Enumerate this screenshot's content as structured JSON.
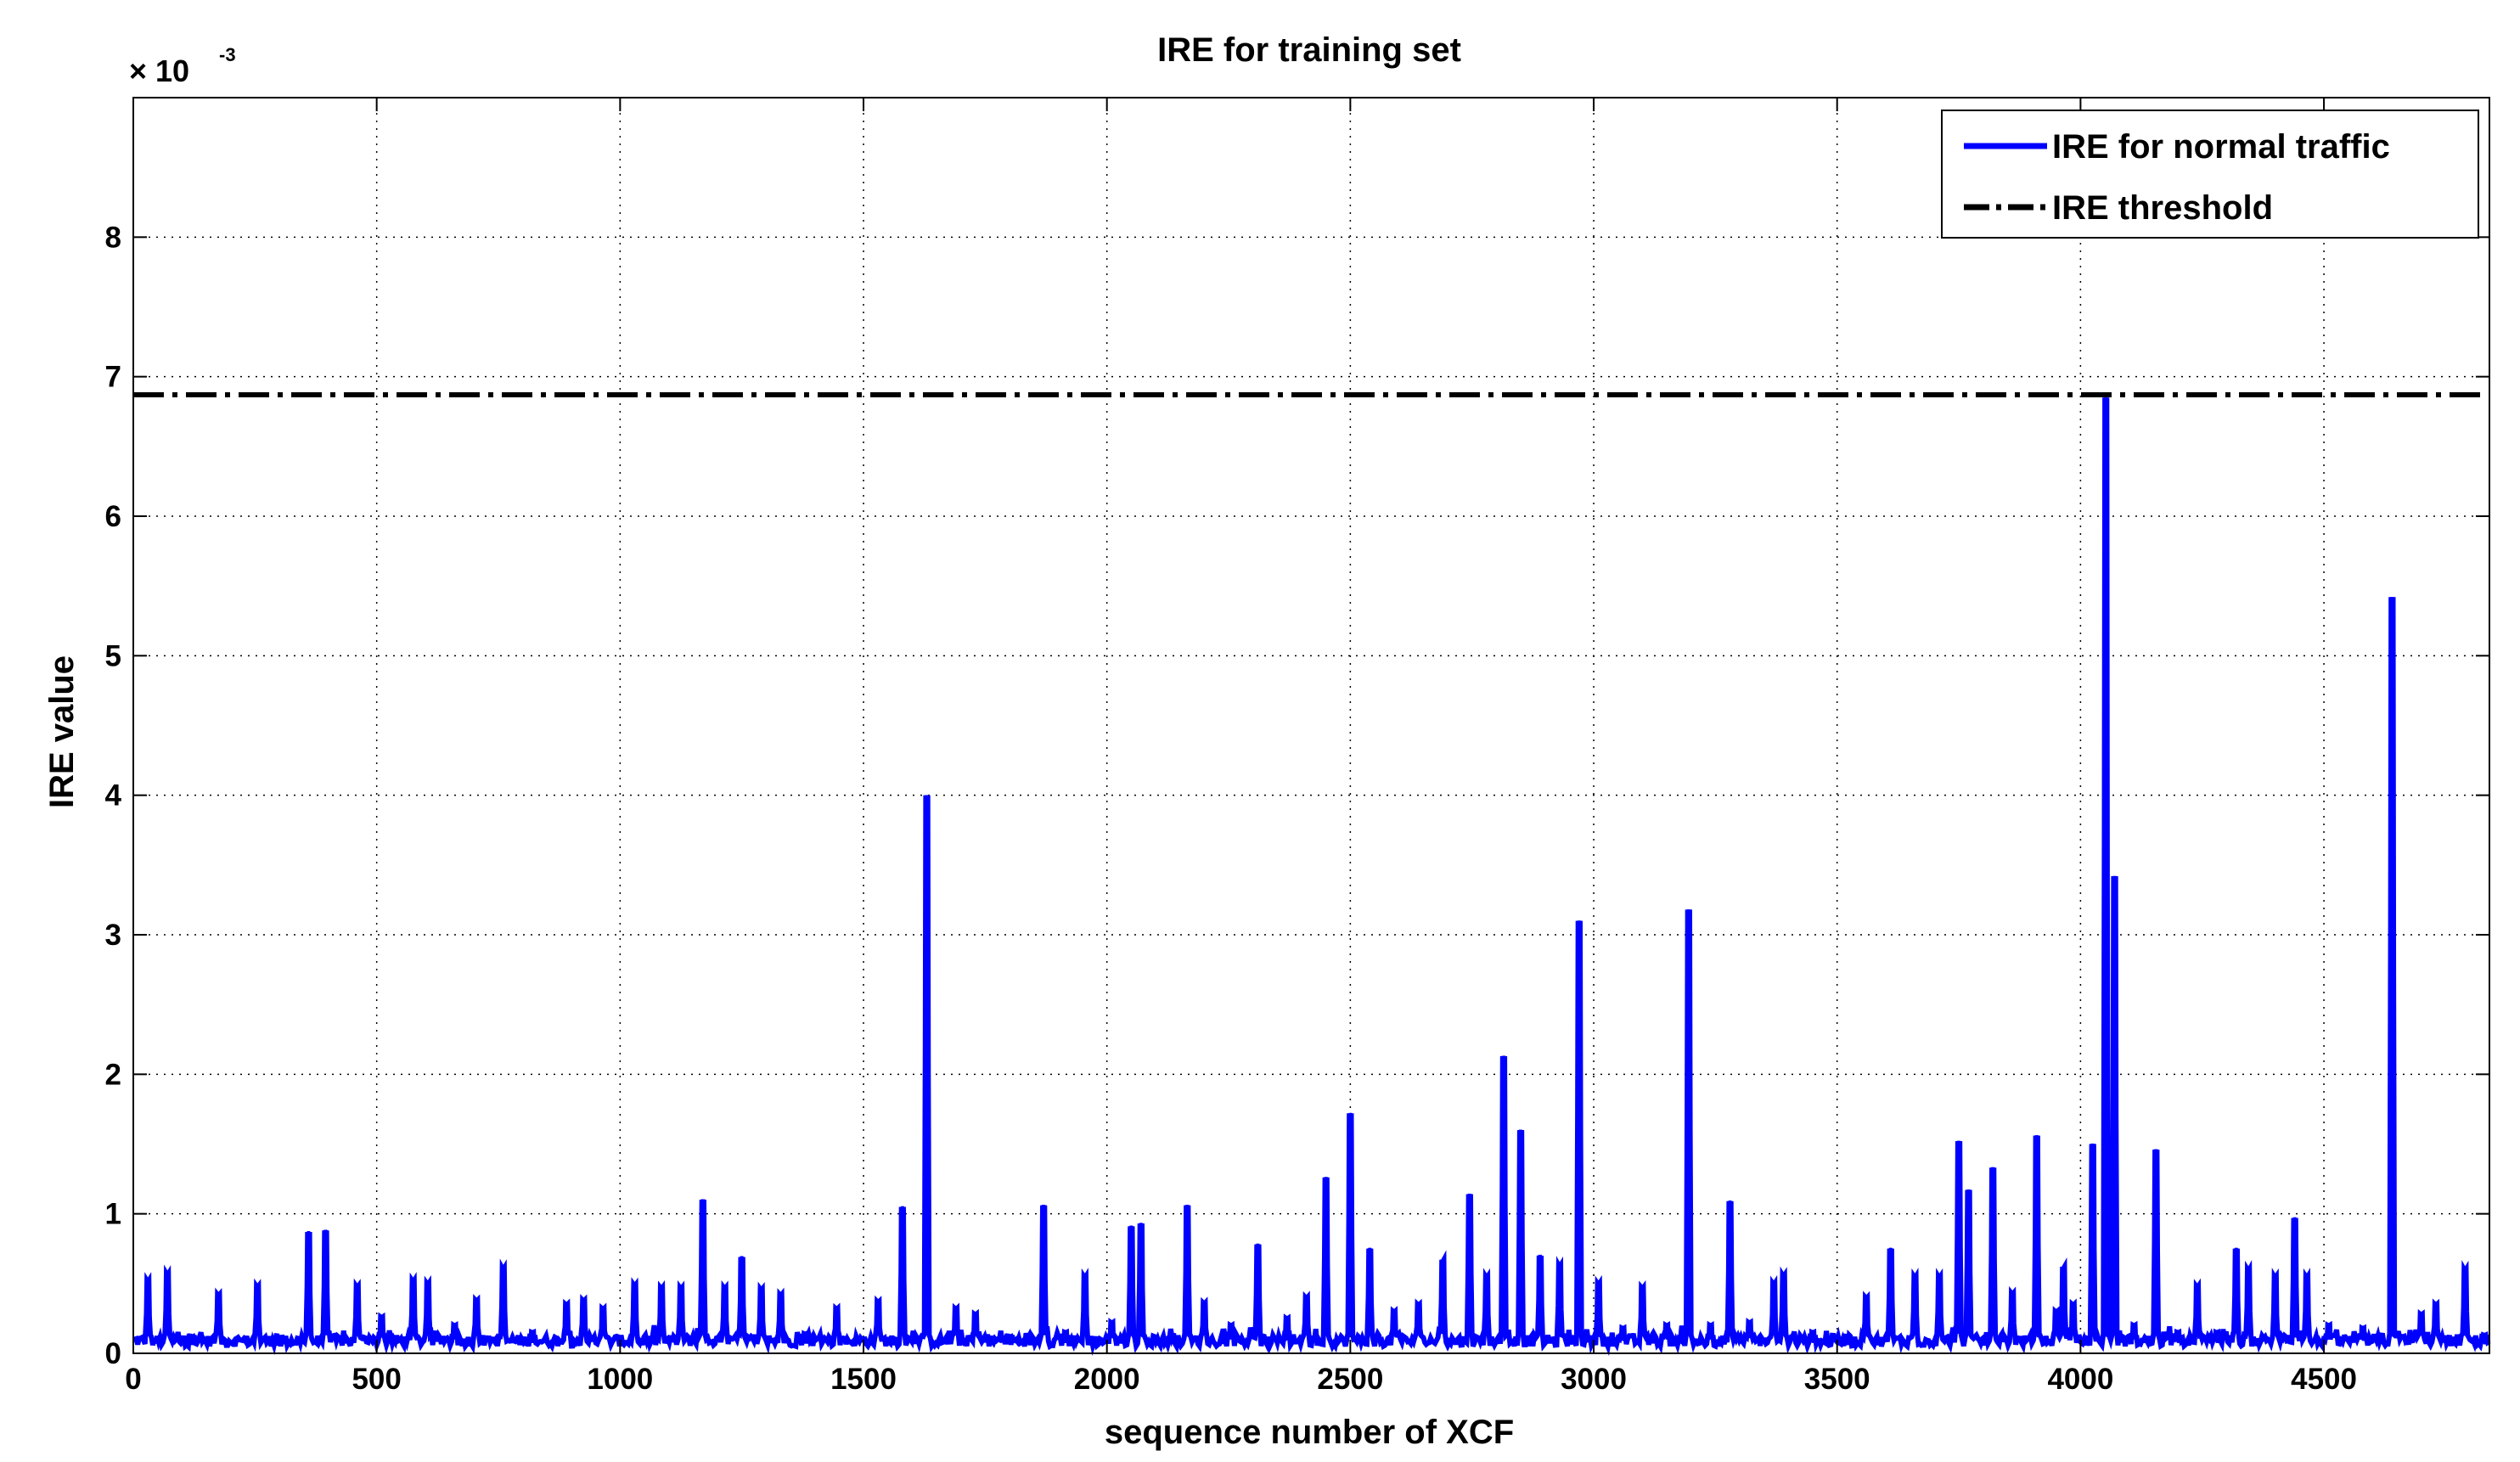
{
  "chart_data": {
    "type": "line",
    "title": "IRE for training set",
    "xlabel": "sequence number of XCF",
    "ylabel": "IRE value",
    "y_multiplier": {
      "base": "× 10",
      "exponent": "-3"
    },
    "xlim": [
      0,
      4840
    ],
    "ylim": [
      0,
      9
    ],
    "x_ticks": [
      0,
      500,
      1000,
      1500,
      2000,
      2500,
      3000,
      3500,
      4000,
      4500
    ],
    "x_tick_labels": [
      "0",
      "500",
      "1000",
      "1500",
      "2000",
      "2500",
      "3000",
      "3500",
      "4000",
      "4500"
    ],
    "y_ticks": [
      0,
      1,
      2,
      3,
      4,
      5,
      6,
      7,
      8
    ],
    "y_tick_labels": [
      "0",
      "1",
      "2",
      "3",
      "4",
      "5",
      "6",
      "7",
      "8"
    ],
    "grid": true,
    "legend_position": "top-right",
    "baseline": 0.09,
    "series": [
      {
        "name": "IRE for normal traffic",
        "color": "#0000ff",
        "style": "solid",
        "spikes": [
          [
            30,
            0.52
          ],
          [
            70,
            0.57
          ],
          [
            120,
            0.12
          ],
          [
            175,
            0.42
          ],
          [
            255,
            0.48
          ],
          [
            300,
            0.1
          ],
          [
            360,
            0.87
          ],
          [
            395,
            0.88
          ],
          [
            460,
            0.48
          ],
          [
            510,
            0.26
          ],
          [
            575,
            0.52
          ],
          [
            605,
            0.5
          ],
          [
            660,
            0.2
          ],
          [
            705,
            0.38
          ],
          [
            760,
            0.61
          ],
          [
            820,
            0.15
          ],
          [
            890,
            0.35
          ],
          [
            925,
            0.38
          ],
          [
            965,
            0.32
          ],
          [
            1030,
            0.49
          ],
          [
            1085,
            0.47
          ],
          [
            1125,
            0.47
          ],
          [
            1170,
            1.1
          ],
          [
            1215,
            0.47
          ],
          [
            1250,
            0.69
          ],
          [
            1290,
            0.46
          ],
          [
            1330,
            0.42
          ],
          [
            1380,
            0.14
          ],
          [
            1445,
            0.32
          ],
          [
            1530,
            0.37
          ],
          [
            1580,
            1.05
          ],
          [
            1630,
            4.0
          ],
          [
            1690,
            0.32
          ],
          [
            1730,
            0.28
          ],
          [
            1800,
            0.12
          ],
          [
            1870,
            1.06
          ],
          [
            1915,
            0.15
          ],
          [
            1955,
            0.55
          ],
          [
            2010,
            0.22
          ],
          [
            2050,
            0.91
          ],
          [
            2070,
            0.93
          ],
          [
            2165,
            1.06
          ],
          [
            2200,
            0.36
          ],
          [
            2255,
            0.2
          ],
          [
            2310,
            0.78
          ],
          [
            2370,
            0.25
          ],
          [
            2410,
            0.4
          ],
          [
            2450,
            1.26
          ],
          [
            2500,
            1.72
          ],
          [
            2540,
            0.75
          ],
          [
            2590,
            0.3
          ],
          [
            2640,
            0.35
          ],
          [
            2690,
            0.67
          ],
          [
            2745,
            1.14
          ],
          [
            2780,
            0.55
          ],
          [
            2815,
            2.13
          ],
          [
            2850,
            1.6
          ],
          [
            2890,
            0.7
          ],
          [
            2930,
            0.63
          ],
          [
            2970,
            3.1
          ],
          [
            3010,
            0.5
          ],
          [
            3060,
            0.18
          ],
          [
            3100,
            0.47
          ],
          [
            3150,
            0.2
          ],
          [
            3195,
            3.18
          ],
          [
            3240,
            0.2
          ],
          [
            3280,
            1.09
          ],
          [
            3320,
            0.22
          ],
          [
            3370,
            0.5
          ],
          [
            3390,
            0.56
          ],
          [
            3450,
            0.15
          ],
          [
            3520,
            0.12
          ],
          [
            3560,
            0.4
          ],
          [
            3610,
            0.75
          ],
          [
            3660,
            0.55
          ],
          [
            3710,
            0.55
          ],
          [
            3750,
            1.52
          ],
          [
            3770,
            1.17
          ],
          [
            3820,
            1.33
          ],
          [
            3860,
            0.43
          ],
          [
            3910,
            1.56
          ],
          [
            3950,
            0.3
          ],
          [
            3965,
            0.62
          ],
          [
            3985,
            0.35
          ],
          [
            4025,
            1.5
          ],
          [
            4052,
            6.85
          ],
          [
            4070,
            3.42
          ],
          [
            4110,
            0.2
          ],
          [
            4155,
            1.46
          ],
          [
            4200,
            0.15
          ],
          [
            4240,
            0.48
          ],
          [
            4280,
            0.15
          ],
          [
            4320,
            0.75
          ],
          [
            4345,
            0.6
          ],
          [
            4400,
            0.55
          ],
          [
            4440,
            0.97
          ],
          [
            4465,
            0.55
          ],
          [
            4510,
            0.2
          ],
          [
            4580,
            0.18
          ],
          [
            4640,
            5.42
          ],
          [
            4700,
            0.28
          ],
          [
            4730,
            0.35
          ],
          [
            4790,
            0.6
          ],
          [
            4830,
            0.13
          ]
        ]
      },
      {
        "name": "IRE threshold",
        "color": "#000000",
        "style": "dash-dot",
        "value": 6.87
      }
    ]
  }
}
